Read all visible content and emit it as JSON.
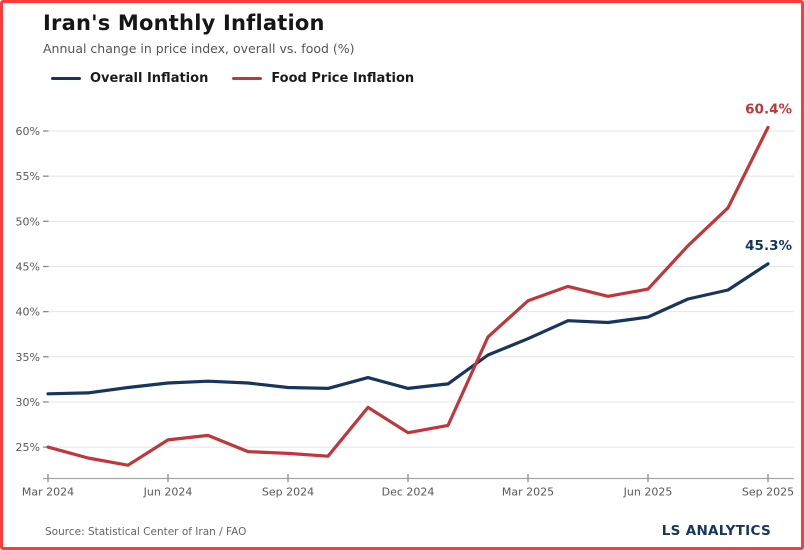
{
  "header": {
    "title": "Iran's Monthly Inflation",
    "subtitle": "Annual change in price index, overall vs. food (%)"
  },
  "legend": [
    {
      "label": "Overall Inflation",
      "color": "#17365d"
    },
    {
      "label": "Food Price Inflation",
      "color": "#c0373b"
    }
  ],
  "footer": {
    "source": "Source: Statistical Center of Iran / FAO",
    "brand": "LS ANALYTICS"
  },
  "colors": {
    "accent_border": "#fb3b3b",
    "grid": "#e4e4e4",
    "axis": "#a8a8a8",
    "tick": "#8a8a8a",
    "tick_label": "#595959",
    "overall": "#17365d",
    "food": "#c0373b"
  },
  "chart_data": {
    "type": "line",
    "title": "Iran's Monthly Inflation",
    "subtitle": "Annual change in price index, overall vs. food (%)",
    "x": [
      "Mar 2024",
      "Apr 2024",
      "May 2024",
      "Jun 2024",
      "Jul 2024",
      "Aug 2024",
      "Sep 2024",
      "Oct 2024",
      "Nov 2024",
      "Dec 2024",
      "Jan 2025",
      "Feb 2025",
      "Mar 2025",
      "Apr 2025",
      "May 2025",
      "Jun 2025",
      "Jul 2025",
      "Aug 2025",
      "Sep 2025"
    ],
    "series": [
      {
        "name": "Overall Inflation",
        "color": "#17365d",
        "values": [
          30.9,
          31.0,
          31.6,
          32.1,
          32.3,
          32.1,
          31.6,
          31.5,
          32.7,
          31.5,
          32.0,
          35.2,
          37.0,
          39.0,
          38.8,
          39.4,
          41.4,
          42.4,
          45.3
        ],
        "end_label": "45.3%"
      },
      {
        "name": "Food Price Inflation",
        "color": "#c0373b",
        "values": [
          25.0,
          23.8,
          23.0,
          25.8,
          26.3,
          24.5,
          24.3,
          24.0,
          29.4,
          26.6,
          27.4,
          37.2,
          41.2,
          42.8,
          41.7,
          42.5,
          47.3,
          51.5,
          60.4
        ],
        "end_label": "60.4%"
      }
    ],
    "ylabel": "",
    "xlabel": "",
    "ylim": [
      22,
      62
    ],
    "yticks": [
      25,
      30,
      35,
      40,
      45,
      50,
      55,
      60
    ],
    "ytick_suffix": "%",
    "xtick_indices": [
      0,
      3,
      6,
      9,
      12,
      15,
      18
    ],
    "grid": "horizontal",
    "legend_position": "top-left"
  }
}
